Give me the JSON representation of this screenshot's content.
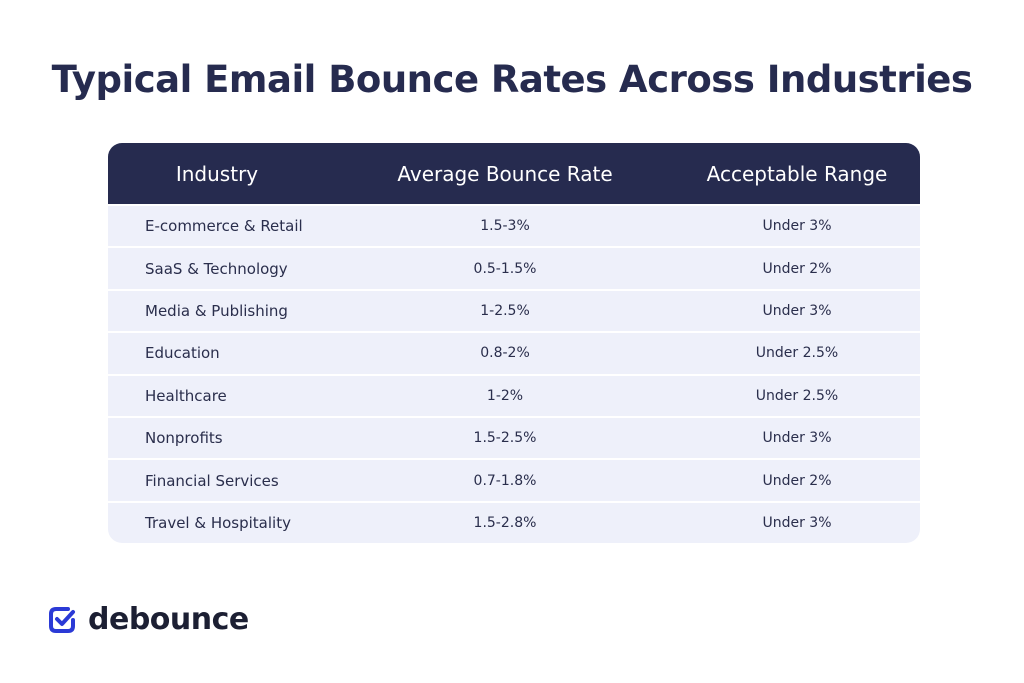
{
  "header": {
    "title": "Typical Email Bounce Rates Across Industries"
  },
  "table": {
    "columns": [
      "Industry",
      "Average Bounce Rate",
      "Acceptable Range"
    ],
    "rows": [
      [
        "E-commerce & Retail",
        "1.5-3%",
        "Under 3%"
      ],
      [
        "SaaS & Technology",
        "0.5-1.5%",
        "Under 2%"
      ],
      [
        "Media & Publishing",
        "1-2.5%",
        "Under 3%"
      ],
      [
        "Education",
        "0.8-2%",
        "Under 2.5%"
      ],
      [
        "Healthcare",
        "1-2%",
        "Under 2.5%"
      ],
      [
        "Nonprofits",
        "1.5-2.5%",
        "Under 3%"
      ],
      [
        "Financial Services",
        "0.7-1.8%",
        "Under 2%"
      ],
      [
        "Travel & Hospitality",
        "1.5-2.8%",
        "Under 3%"
      ]
    ]
  },
  "footer": {
    "logo": "debounce"
  }
}
